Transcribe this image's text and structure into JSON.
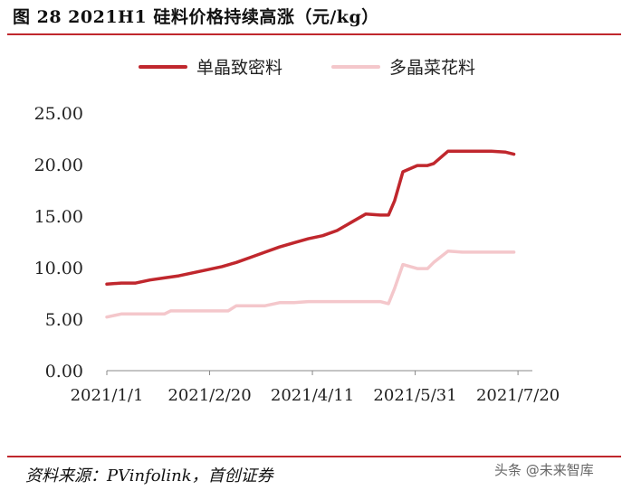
{
  "header": {
    "title": "图  28 2021H1 硅料价格持续高涨（元/kg）"
  },
  "footer": {
    "source": "资料来源：PVinfolink，首创证券",
    "watermark_text": "头条 @未来智库"
  },
  "chart_data": {
    "type": "line",
    "title": "",
    "xlabel": "",
    "ylabel": "",
    "ylim": [
      0,
      25
    ],
    "yticks": [
      "0.00",
      "5.00",
      "10.00",
      "15.00",
      "20.00",
      "25.00"
    ],
    "xlim": [
      "2021-01-01",
      "2021-07-27"
    ],
    "xticks": [
      {
        "label": "2021/1/1",
        "date": "2021-01-01"
      },
      {
        "label": "2021/2/20",
        "date": "2021-02-20"
      },
      {
        "label": "2021/4/11",
        "date": "2021-04-11"
      },
      {
        "label": "2021/5/31",
        "date": "2021-05-31"
      },
      {
        "label": "2021/7/20",
        "date": "2021-07-20"
      }
    ],
    "grid": false,
    "legend": "top",
    "series": [
      {
        "name": "单晶致密料",
        "color": "#c0272d",
        "points": [
          [
            "2021-01-01",
            8.4
          ],
          [
            "2021-01-08",
            8.5
          ],
          [
            "2021-01-15",
            8.5
          ],
          [
            "2021-01-22",
            8.8
          ],
          [
            "2021-01-29",
            9.0
          ],
          [
            "2021-02-05",
            9.2
          ],
          [
            "2021-02-12",
            9.5
          ],
          [
            "2021-02-19",
            9.8
          ],
          [
            "2021-02-26",
            10.1
          ],
          [
            "2021-03-05",
            10.5
          ],
          [
            "2021-03-12",
            11.0
          ],
          [
            "2021-03-19",
            11.5
          ],
          [
            "2021-03-26",
            12.0
          ],
          [
            "2021-04-02",
            12.4
          ],
          [
            "2021-04-09",
            12.8
          ],
          [
            "2021-04-16",
            13.1
          ],
          [
            "2021-04-23",
            13.6
          ],
          [
            "2021-04-30",
            14.4
          ],
          [
            "2021-05-07",
            15.2
          ],
          [
            "2021-05-14",
            15.1
          ],
          [
            "2021-05-18",
            15.1
          ],
          [
            "2021-05-21",
            16.5
          ],
          [
            "2021-05-25",
            19.3
          ],
          [
            "2021-06-01",
            19.9
          ],
          [
            "2021-06-06",
            19.9
          ],
          [
            "2021-06-09",
            20.1
          ],
          [
            "2021-06-16",
            21.3
          ],
          [
            "2021-06-23",
            21.3
          ],
          [
            "2021-06-30",
            21.3
          ],
          [
            "2021-07-07",
            21.3
          ],
          [
            "2021-07-14",
            21.2
          ],
          [
            "2021-07-18",
            21.0
          ]
        ]
      },
      {
        "name": "多晶菜花料",
        "color": "#f4c7cb",
        "points": [
          [
            "2021-01-01",
            5.2
          ],
          [
            "2021-01-08",
            5.5
          ],
          [
            "2021-01-15",
            5.5
          ],
          [
            "2021-01-22",
            5.5
          ],
          [
            "2021-01-29",
            5.5
          ],
          [
            "2021-02-01",
            5.8
          ],
          [
            "2021-02-08",
            5.8
          ],
          [
            "2021-02-15",
            5.8
          ],
          [
            "2021-02-22",
            5.8
          ],
          [
            "2021-03-01",
            5.8
          ],
          [
            "2021-03-05",
            6.3
          ],
          [
            "2021-03-12",
            6.3
          ],
          [
            "2021-03-19",
            6.3
          ],
          [
            "2021-03-26",
            6.6
          ],
          [
            "2021-04-02",
            6.6
          ],
          [
            "2021-04-09",
            6.7
          ],
          [
            "2021-04-16",
            6.7
          ],
          [
            "2021-04-23",
            6.7
          ],
          [
            "2021-04-30",
            6.7
          ],
          [
            "2021-05-07",
            6.7
          ],
          [
            "2021-05-14",
            6.7
          ],
          [
            "2021-05-18",
            6.5
          ],
          [
            "2021-05-21",
            8.0
          ],
          [
            "2021-05-25",
            10.3
          ],
          [
            "2021-06-01",
            9.9
          ],
          [
            "2021-06-06",
            9.9
          ],
          [
            "2021-06-09",
            10.5
          ],
          [
            "2021-06-16",
            11.6
          ],
          [
            "2021-06-23",
            11.5
          ],
          [
            "2021-06-30",
            11.5
          ],
          [
            "2021-07-07",
            11.5
          ],
          [
            "2021-07-18",
            11.5
          ]
        ]
      }
    ]
  }
}
